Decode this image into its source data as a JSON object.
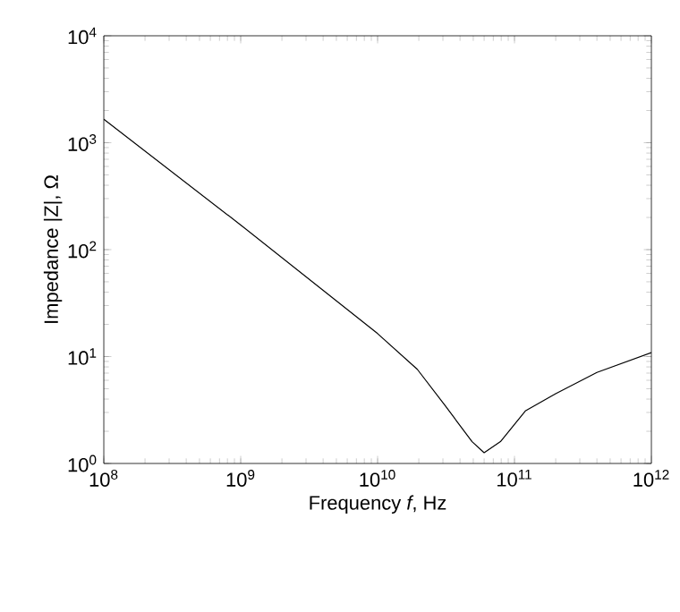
{
  "chart_data": {
    "type": "line",
    "xlabel": "Frequency *f*, Hz",
    "ylabel": "Impedance |Z|, Ω",
    "log": "xy",
    "x": [
      100000000.0,
      1000000000.0,
      10000000000.0,
      19500000000.0,
      31000000000.0,
      49000000000.0,
      60000000000.0,
      79000000000.0,
      120000000000.0,
      200000000000.0,
      400000000000.0,
      1000000000000.0
    ],
    "series": [
      {
        "color": "#000000",
        "values": [
          1660,
          170,
          16.4,
          7.6,
          3.5,
          1.6,
          1.26,
          1.6,
          3.1,
          4.5,
          7.1,
          10.9
        ]
      }
    ],
    "xlim": [
      100000000.0,
      1000000000000.0
    ],
    "ylim": [
      1,
      10000.0
    ],
    "xticks": [
      {
        "value": 100000000.0,
        "label": "10$^{8}$"
      },
      {
        "value": 1000000000.0,
        "label": "10$^{9}$"
      },
      {
        "value": 10000000000.0,
        "label": "10$^{10}$"
      },
      {
        "value": 100000000000.0,
        "label": "10$^{11}$"
      },
      {
        "value": 1000000000000.0,
        "label": "10$^{12}$"
      }
    ],
    "yticks": [
      {
        "value": 1,
        "label": "10$^{0}$"
      },
      {
        "value": 10,
        "label": "10$^{1}$"
      },
      {
        "value": 100,
        "label": "10$^{2}$"
      },
      {
        "value": 1000,
        "label": "10$^{3}$"
      },
      {
        "value": 10000,
        "label": "10$^{4}$"
      }
    ],
    "grid": false
  }
}
